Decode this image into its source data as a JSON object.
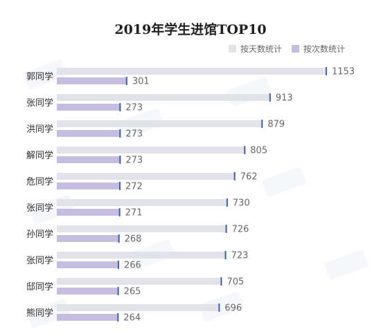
{
  "chart_data": {
    "type": "bar",
    "orientation": "horizontal",
    "title": "2019年学生进馆TOP10",
    "categories": [
      "郭同学",
      "张同学",
      "洪同学",
      "解同学",
      "危同学",
      "张同学",
      "孙同学",
      "张同学",
      "邸同学",
      "熊同学"
    ],
    "series": [
      {
        "name": "按天数统计",
        "values": [
          1153,
          913,
          879,
          805,
          762,
          730,
          726,
          723,
          705,
          696
        ],
        "color": "#e2e2ea"
      },
      {
        "name": "按次数统计",
        "values": [
          301,
          273,
          273,
          273,
          272,
          271,
          268,
          266,
          265,
          264
        ],
        "color": "#c5bde0"
      }
    ],
    "marker_color": "#3f5fa8",
    "legend_position": "top-right",
    "grid": false
  }
}
